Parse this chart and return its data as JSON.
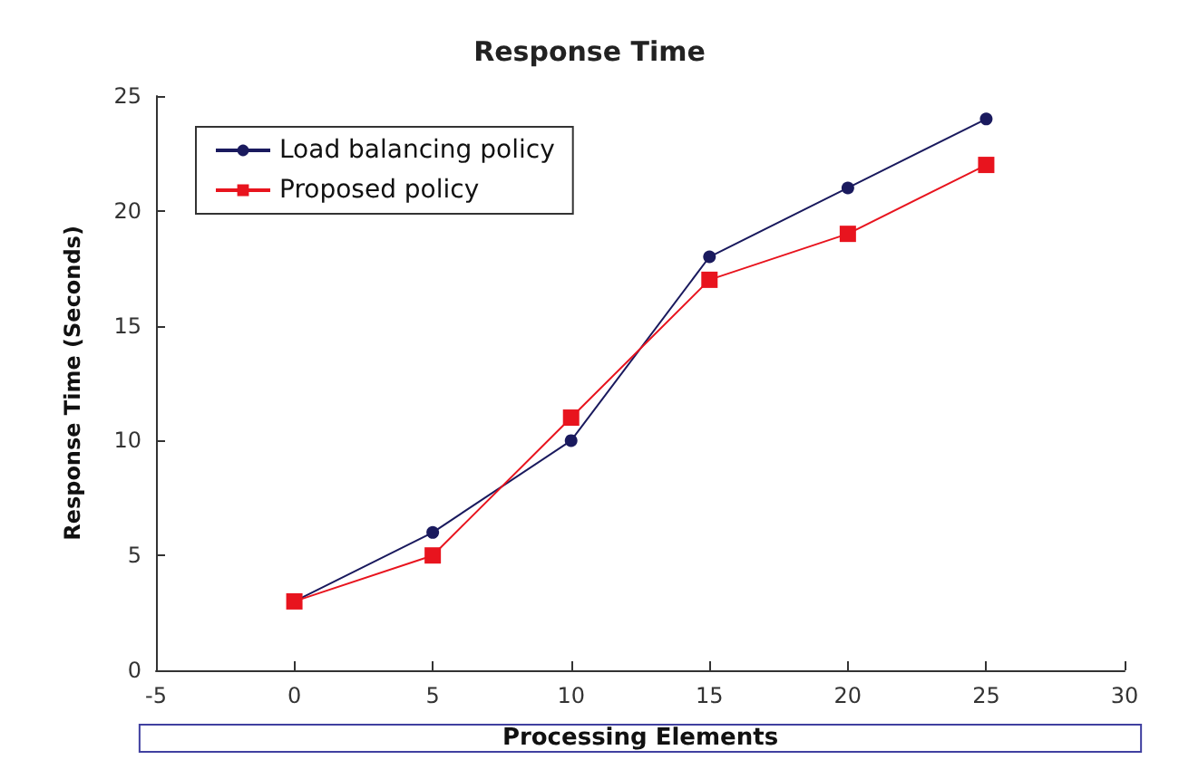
{
  "chart_data": {
    "type": "line",
    "title": "Response Time",
    "xlabel": "Processing Elements",
    "ylabel": "Response Time (Seconds)",
    "x": [
      0,
      5,
      10,
      15,
      20,
      25
    ],
    "series": [
      {
        "name": "Load balancing policy",
        "color": "#1a1a5e",
        "marker": "circle",
        "values": [
          3,
          6,
          10,
          18,
          21,
          24
        ]
      },
      {
        "name": "Proposed policy",
        "color": "#e8141e",
        "marker": "square",
        "values": [
          3,
          5,
          11,
          17,
          19,
          22
        ]
      }
    ],
    "xlim": [
      -5,
      30
    ],
    "xticks": [
      -5,
      0,
      5,
      10,
      15,
      20,
      25,
      30
    ],
    "ylim": [
      0,
      25
    ],
    "yticks": [
      0,
      5,
      10,
      15,
      20,
      25
    ],
    "legend": "top left",
    "grid": false
  }
}
